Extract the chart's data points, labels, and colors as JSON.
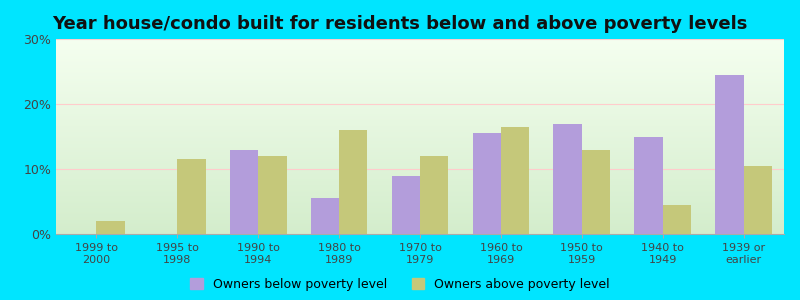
{
  "title": "Year house/condo built for residents below and above poverty levels",
  "categories": [
    "1999 to\n2000",
    "1995 to\n1998",
    "1990 to\n1994",
    "1980 to\n1989",
    "1970 to\n1979",
    "1960 to\n1969",
    "1950 to\n1959",
    "1940 to\n1949",
    "1939 or\nearlier"
  ],
  "below_poverty": [
    0,
    0,
    13,
    5.5,
    9,
    15.5,
    17,
    15,
    24.5
  ],
  "above_poverty": [
    2,
    11.5,
    12,
    16,
    12,
    16.5,
    13,
    4.5,
    10.5
  ],
  "below_color": "#b39ddb",
  "above_color": "#c5c87a",
  "below_label": "Owners below poverty level",
  "above_label": "Owners above poverty level",
  "ylim": [
    0,
    30
  ],
  "yticks": [
    0,
    10,
    20,
    30
  ],
  "ytick_labels": [
    "0%",
    "10%",
    "20%",
    "30%"
  ],
  "bg_color_outer": "#00e5ff",
  "bg_color_inner": "#e8f5e0",
  "title_fontsize": 13,
  "bar_width": 0.35,
  "legend_marker_color_below": "#cc99cc",
  "legend_marker_color_above": "#cccc88"
}
